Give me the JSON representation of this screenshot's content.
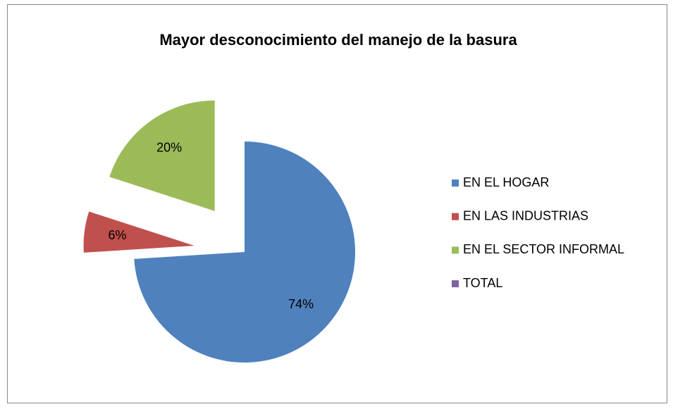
{
  "chart_data": {
    "type": "pie",
    "title": "Mayor desconocimiento del manejo de la basura",
    "categories": [
      "EN EL HOGAR",
      "EN LAS INDUSTRIAS",
      "EN EL SECTOR INFORMAL",
      "TOTAL"
    ],
    "values": [
      74,
      6,
      20,
      null
    ],
    "value_labels": [
      "74%",
      "6%",
      "20%",
      null
    ],
    "colors": [
      "#4f81bd",
      "#c0504d",
      "#9bbb59",
      "#8064a2"
    ],
    "legend": "right"
  }
}
